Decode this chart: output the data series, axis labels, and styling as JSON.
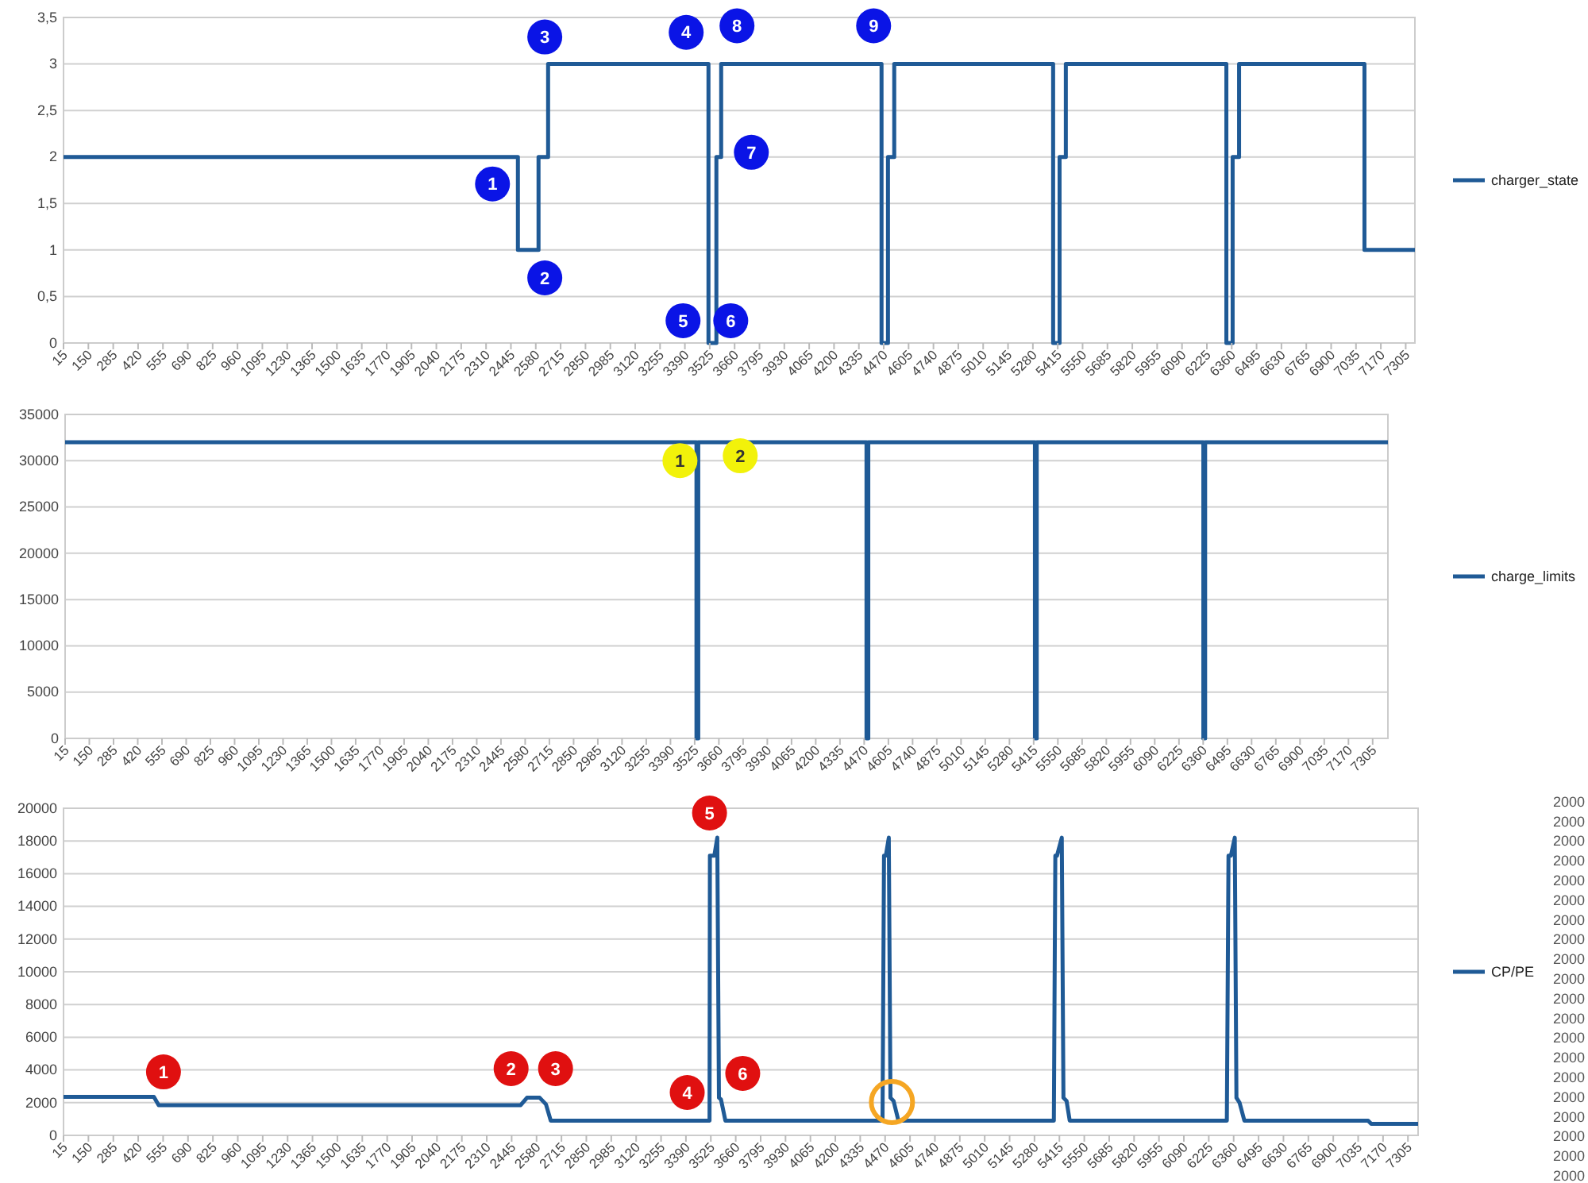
{
  "chart_data": [
    {
      "type": "step",
      "xlim": [
        15,
        7355
      ],
      "ylim": [
        0,
        3.5
      ],
      "yticks": [
        0,
        {
          "value": 0.5,
          "label": "0,5"
        },
        1,
        {
          "value": 1.5,
          "label": "1,5"
        },
        2,
        {
          "value": 2.5,
          "label": "2,5"
        },
        3,
        {
          "value": 3.5,
          "label": "3,5"
        }
      ],
      "xticks": [
        15,
        150,
        285,
        420,
        555,
        690,
        825,
        960,
        1095,
        1230,
        1365,
        1500,
        1635,
        1770,
        1905,
        2040,
        2175,
        2310,
        2445,
        2580,
        2715,
        2850,
        2985,
        3120,
        3255,
        3390,
        3525,
        3660,
        3795,
        3930,
        4065,
        4200,
        4335,
        4470,
        4605,
        4740,
        4875,
        5010,
        5145,
        5280,
        5415,
        5550,
        5685,
        5820,
        5955,
        6090,
        6225,
        6360,
        6495,
        6630,
        6765,
        6900,
        7035,
        7170,
        7305
      ],
      "grid": "y",
      "legend": "right",
      "series": [
        {
          "name": "charger_state",
          "color": "#1f5a96",
          "x": [
            15,
            2483,
            2595,
            2647,
            3518,
            3561,
            3587,
            4458,
            4493,
            4527,
            5390,
            5425,
            5459,
            6331,
            6365,
            6400,
            7081,
            7355
          ],
          "values": [
            2,
            1,
            2,
            3,
            0,
            2,
            3,
            0,
            2,
            3,
            0,
            2,
            3,
            0,
            2,
            3,
            1,
            1
          ]
        }
      ],
      "annotations": [
        {
          "text": "1",
          "x": 2345,
          "y": 1.71
        },
        {
          "text": "2",
          "x": 2629,
          "y": 0.7
        },
        {
          "text": "3",
          "x": 2629,
          "y": 3.29
        },
        {
          "text": "4",
          "x": 3397,
          "y": 3.34
        },
        {
          "text": "5",
          "x": 3380,
          "y": 0.24
        },
        {
          "text": "6",
          "x": 3639,
          "y": 0.24
        },
        {
          "text": "7",
          "x": 3751,
          "y": 2.05
        },
        {
          "text": "8",
          "x": 3673,
          "y": 3.41
        },
        {
          "text": "9",
          "x": 4415,
          "y": 3.41
        }
      ]
    },
    {
      "type": "step",
      "xlim": [
        15,
        7390
      ],
      "ylim": [
        0,
        35000
      ],
      "yticks": [
        0,
        5000,
        10000,
        15000,
        20000,
        25000,
        30000,
        35000
      ],
      "xticks": [
        15,
        150,
        285,
        420,
        555,
        690,
        825,
        960,
        1095,
        1230,
        1365,
        1500,
        1635,
        1770,
        1905,
        2040,
        2175,
        2310,
        2445,
        2580,
        2715,
        2850,
        2985,
        3120,
        3255,
        3390,
        3525,
        3660,
        3795,
        3930,
        4065,
        4200,
        4335,
        4470,
        4605,
        4740,
        4875,
        5010,
        5145,
        5280,
        5415,
        5550,
        5685,
        5820,
        5955,
        6090,
        6225,
        6360,
        6495,
        6630,
        6765,
        6900,
        7035,
        7170,
        7305
      ],
      "grid": "y",
      "legend": "right",
      "series": [
        {
          "name": "charge_limits",
          "color": "#1f5a96",
          "x": [
            15,
            3535,
            3545,
            4483,
            4493,
            5422,
            5432,
            6361,
            6371,
            7390
          ],
          "values": [
            32000,
            0,
            32000,
            0,
            32000,
            0,
            32000,
            0,
            32000,
            32000
          ]
        }
      ],
      "annotations": [
        {
          "text": "1",
          "x": 3443,
          "y": 30010
        },
        {
          "text": "2",
          "x": 3779,
          "y": 30530
        }
      ]
    },
    {
      "type": "line",
      "xlim": [
        15,
        7360
      ],
      "ylim": [
        0,
        20000
      ],
      "yticks": [
        0,
        2000,
        4000,
        6000,
        8000,
        10000,
        12000,
        14000,
        16000,
        18000,
        20000
      ],
      "xticks": [
        15,
        150,
        285,
        420,
        555,
        690,
        825,
        960,
        1095,
        1230,
        1365,
        1500,
        1635,
        1770,
        1905,
        2040,
        2175,
        2310,
        2445,
        2580,
        2715,
        2850,
        2985,
        3120,
        3255,
        3390,
        3525,
        3660,
        3795,
        3930,
        4065,
        4200,
        4335,
        4470,
        4605,
        4740,
        4875,
        5010,
        5145,
        5280,
        5415,
        5550,
        5685,
        5820,
        5955,
        6090,
        6225,
        6360,
        6495,
        6630,
        6765,
        6900,
        7035,
        7170,
        7305
      ],
      "grid": "y",
      "legend": "right",
      "series": [
        {
          "name": "CP/PE",
          "color": "#1f5a96",
          "x": [
            15,
            505,
            531,
            2494,
            2528,
            2597,
            2631,
            2657,
            3518,
            3520,
            3544,
            3560,
            3569,
            3580,
            3604,
            4456,
            4464,
            4474,
            4490,
            4499,
            4516,
            4542,
            5385,
            5393,
            5402,
            5428,
            5437,
            5454,
            5471,
            6323,
            6332,
            6345,
            6366,
            6375,
            6392,
            6418,
            7089,
            7106,
            7360
          ],
          "values": [
            2350,
            2350,
            1850,
            1850,
            2300,
            2300,
            1900,
            900,
            900,
            17100,
            17100,
            18200,
            2300,
            2200,
            900,
            900,
            17100,
            17100,
            18200,
            2300,
            2100,
            900,
            900,
            17100,
            17100,
            18200,
            2300,
            2100,
            900,
            900,
            17100,
            17100,
            18200,
            2300,
            2000,
            900,
            900,
            700,
            700
          ]
        }
      ],
      "annotations": [
        {
          "text": "1",
          "x": 557,
          "y": 3880
        },
        {
          "text": "2",
          "x": 2442,
          "y": 4080
        },
        {
          "text": "3",
          "x": 2683,
          "y": 4080
        },
        {
          "text": "4",
          "x": 3397,
          "y": 2620
        },
        {
          "text": "5",
          "x": 3518,
          "y": 19710
        },
        {
          "text": "6",
          "x": 3698,
          "y": 3790
        },
        "2000",
        "2000",
        "2000",
        "2000",
        "2000",
        "2000",
        "2000",
        "2000",
        "2000",
        "2000",
        "2000",
        "2000",
        "2000",
        "2000",
        "2000",
        "2000",
        "2000",
        "2000",
        "2000",
        "2000"
      ]
    }
  ]
}
